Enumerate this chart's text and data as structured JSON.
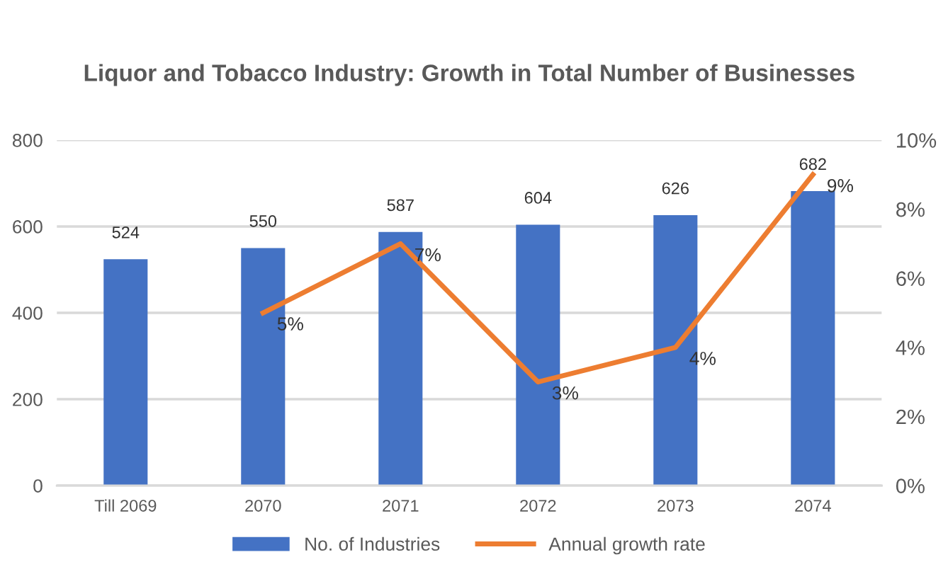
{
  "chart_data": {
    "type": "bar",
    "title": "Liquor and Tobacco Industry: Growth in Total Number of Businesses",
    "categories": [
      "Till 2069",
      "2070",
      "2071",
      "2072",
      "2073",
      "2074"
    ],
    "series": [
      {
        "name": "No. of Industries",
        "color": "#4472c4",
        "values": [
          524,
          550,
          587,
          604,
          626,
          682
        ],
        "value_labels": [
          "524",
          "550",
          "587",
          "604",
          "626",
          "682"
        ]
      },
      {
        "name": "Annual growth rate",
        "type": "line",
        "axis": "y2",
        "color": "#ed7d31",
        "values": [
          null,
          5,
          7,
          3,
          4,
          9
        ],
        "value_labels": [
          null,
          "5%",
          "7%",
          "3%",
          "4%",
          "9%"
        ]
      }
    ],
    "ylim": [
      0,
      800
    ],
    "yticks": [
      0,
      200,
      400,
      600,
      800
    ],
    "y2lim": [
      0,
      10
    ],
    "y2ticks": [
      {
        "value": 0,
        "label": "0%"
      },
      {
        "value": 2,
        "label": "2%"
      },
      {
        "value": 4,
        "label": "4%"
      },
      {
        "value": 6,
        "label": "6%"
      },
      {
        "value": 8,
        "label": "8%"
      },
      {
        "value": 10,
        "label": "10%"
      }
    ],
    "grid": "y",
    "legend": "bottom",
    "marker": "none",
    "line_style": "solid"
  }
}
